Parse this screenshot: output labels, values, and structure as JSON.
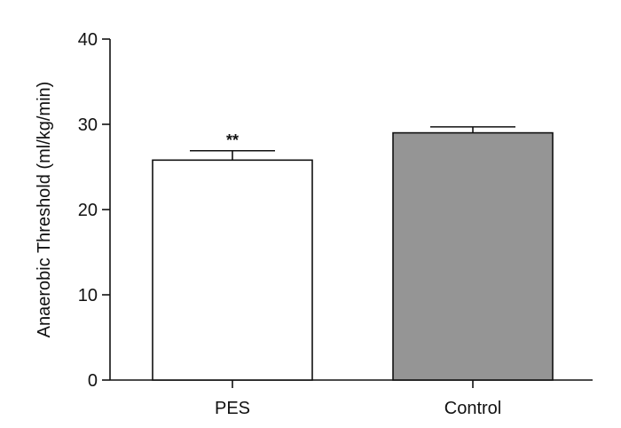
{
  "chart_data": {
    "type": "bar",
    "categories": [
      "PES",
      "Control"
    ],
    "values": [
      25.8,
      29.0
    ],
    "error_upper": [
      26.9,
      29.7
    ],
    "bar_colors": [
      "#ffffff",
      "#959595"
    ],
    "annotations": [
      "**",
      ""
    ],
    "ylabel": "Anaerobic Threshold (ml/kg/min)",
    "xlabel": "",
    "title": "",
    "ylim": [
      0,
      40
    ],
    "yticks": [
      "0",
      "10",
      "20",
      "30",
      "40"
    ],
    "grid": false
  }
}
